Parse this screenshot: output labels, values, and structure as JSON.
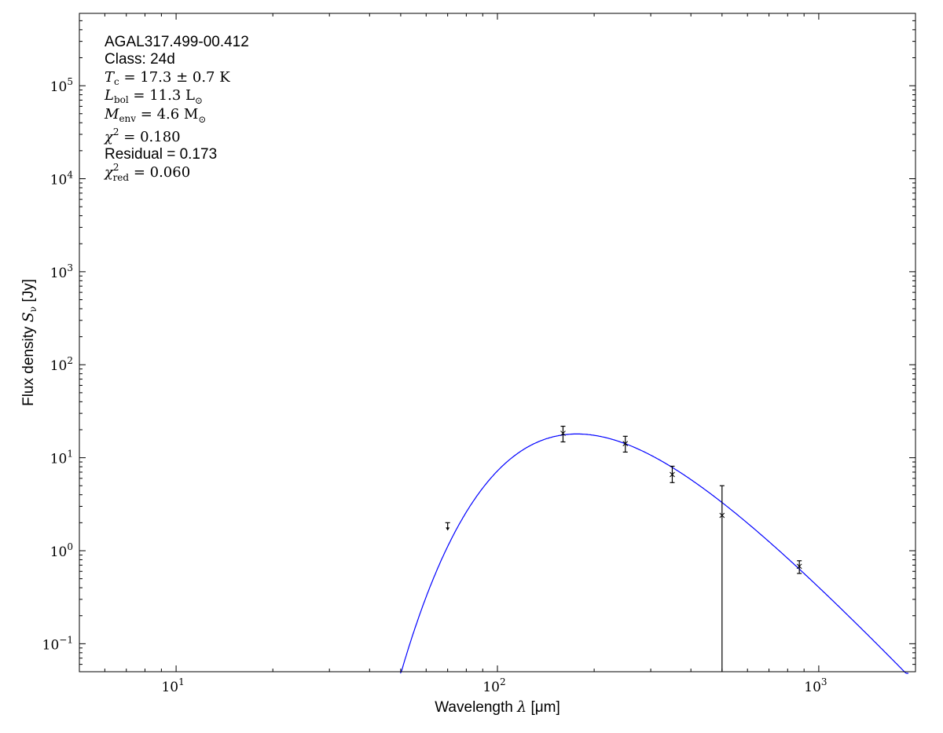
{
  "chart_data": {
    "type": "scatter",
    "xlabel": "Wavelength λ [μm]",
    "ylabel": "Flux density S_ν [Jy]",
    "ylabel_parts": {
      "text": "Flux density ",
      "sym": "S",
      "sub": "ν",
      "unit": " [Jy]"
    },
    "xlabel_parts": {
      "text": "Wavelength ",
      "sym": "λ",
      "unit": " [μm]"
    },
    "xscale": "log",
    "yscale": "log",
    "xlim": [
      5,
      2000
    ],
    "ylim": [
      0.05,
      600000
    ],
    "grid": false,
    "x_ticks": [
      {
        "value": 10,
        "base": "10",
        "exp": "1"
      },
      {
        "value": 100,
        "base": "10",
        "exp": "2"
      },
      {
        "value": 1000,
        "base": "10",
        "exp": "3"
      }
    ],
    "y_ticks": [
      {
        "value": 0.1,
        "base": "10",
        "exp": "−1"
      },
      {
        "value": 1,
        "base": "10",
        "exp": "0"
      },
      {
        "value": 10,
        "base": "10",
        "exp": "1"
      },
      {
        "value": 100,
        "base": "10",
        "exp": "2"
      },
      {
        "value": 1000,
        "base": "10",
        "exp": "3"
      },
      {
        "value": 10000,
        "base": "10",
        "exp": "4"
      },
      {
        "value": 100000,
        "base": "10",
        "exp": "5"
      }
    ],
    "points": [
      {
        "wavelength": 160,
        "flux": 18.3,
        "err_low": 14.8,
        "err_high": 21.8
      },
      {
        "wavelength": 250,
        "flux": 14.2,
        "err_low": 11.5,
        "err_high": 17.0
      },
      {
        "wavelength": 350,
        "flux": 6.6,
        "err_low": 5.4,
        "err_high": 8.1
      },
      {
        "wavelength": 500,
        "flux": 2.4,
        "err_low": 0.05,
        "err_high": 5.0
      },
      {
        "wavelength": 870,
        "flux": 0.68,
        "err_low": 0.57,
        "err_high": 0.78
      }
    ],
    "upper_limits": [
      {
        "wavelength": 70,
        "flux": 2.0
      }
    ],
    "model": {
      "type": "modified blackbody fit",
      "temperature_K": 17.3,
      "color": "#0000ff"
    },
    "point_color": "#000000",
    "annotations": {
      "source": "AGAL317.499-00.412",
      "class": "Class: 24d",
      "tc": {
        "sym": "T",
        "sub": "c",
        "text": " = 17.3 ± 0.7 K"
      },
      "lbol": {
        "sym": "L",
        "sub": "bol",
        "text": " = 11.3 L",
        "sub2": "⊙"
      },
      "menv": {
        "sym": "M",
        "sub": "env",
        "text": " = 4.6 M",
        "sub2": "⊙"
      },
      "chi2": {
        "sym": "χ",
        "sup": "2",
        "text": " = 0.180"
      },
      "residual": "Residual = 0.173",
      "chi2red": {
        "sym": "χ",
        "sup": "2",
        "sub": "red",
        "text": " = 0.060"
      }
    }
  }
}
